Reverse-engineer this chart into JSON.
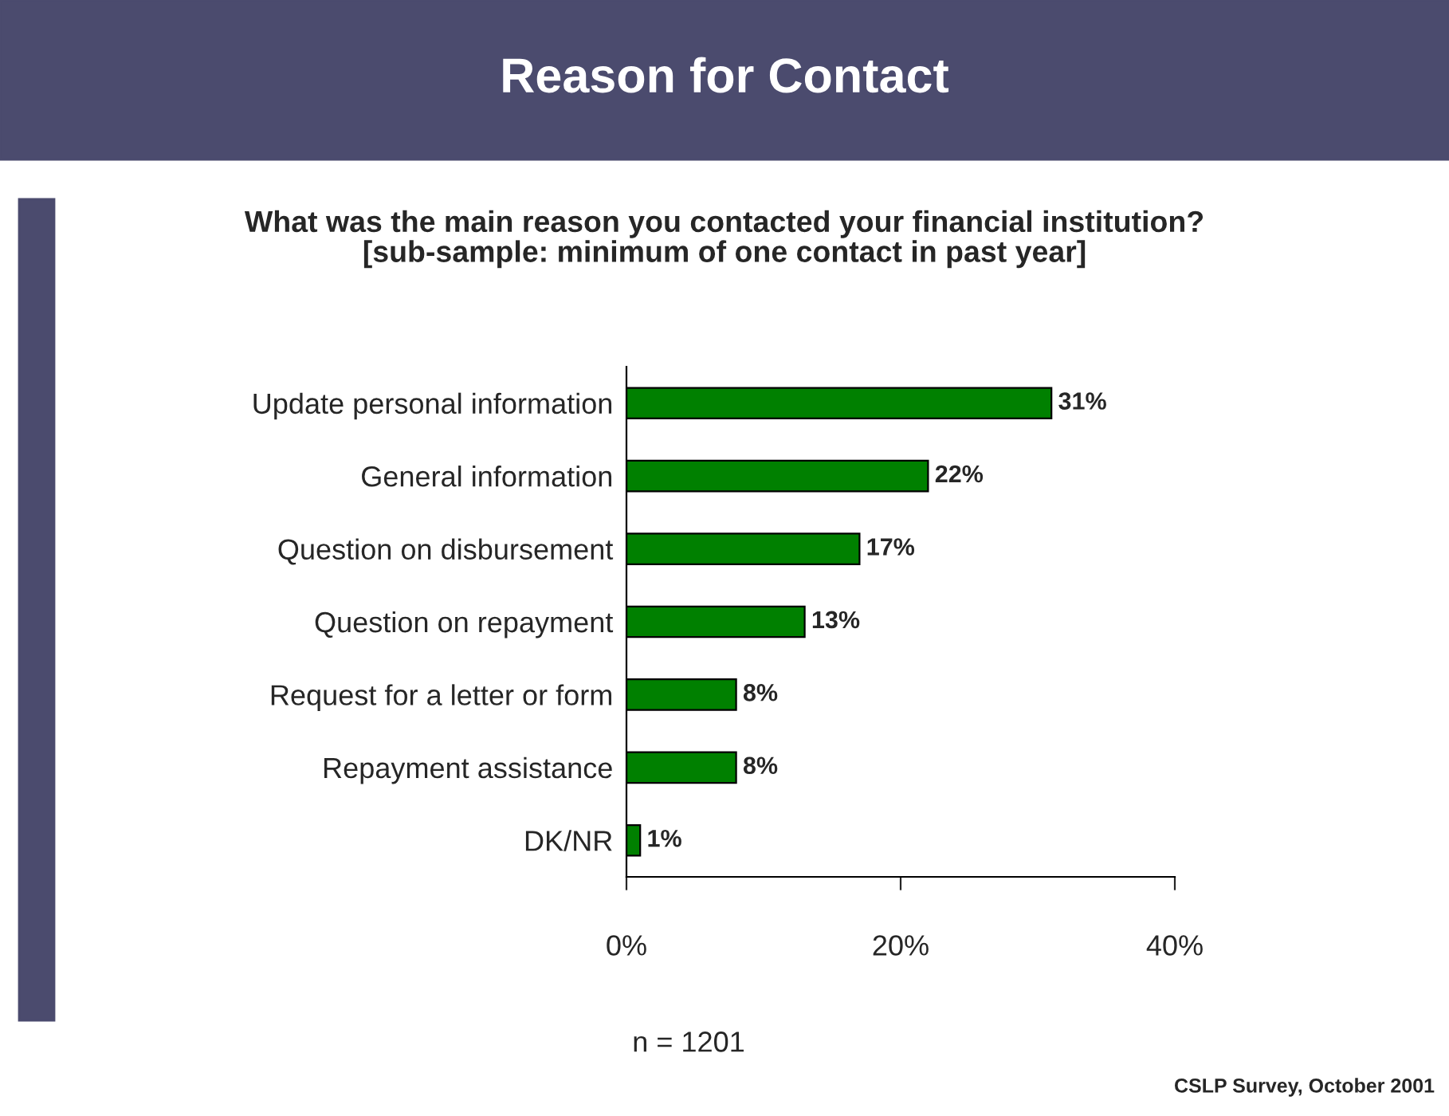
{
  "chart_data": {
    "type": "bar",
    "orientation": "horizontal",
    "title": "Reason for Contact",
    "subtitle": "What was the main reason you contacted your financial institution?\n[sub-sample: minimum of one contact in past year]",
    "categories": [
      "Update personal information",
      "General information",
      "Question on disbursement",
      "Question on repayment",
      "Request for a letter or form",
      "Repayment assistance",
      "DK/NR"
    ],
    "values": [
      31,
      22,
      17,
      13,
      8,
      8,
      1
    ],
    "value_labels": [
      "31%",
      "22%",
      "17%",
      "13%",
      "8%",
      "8%",
      "1%"
    ],
    "color": "#008000",
    "xlim": [
      0,
      40
    ],
    "xticks": [
      {
        "value": 0,
        "label": "0%"
      },
      {
        "value": 20,
        "label": "20%"
      },
      {
        "value": 40,
        "label": "40%"
      }
    ],
    "grid": false,
    "legend": false,
    "annotations": [
      "n = 1201",
      "CSLP Survey, October 2001"
    ]
  }
}
